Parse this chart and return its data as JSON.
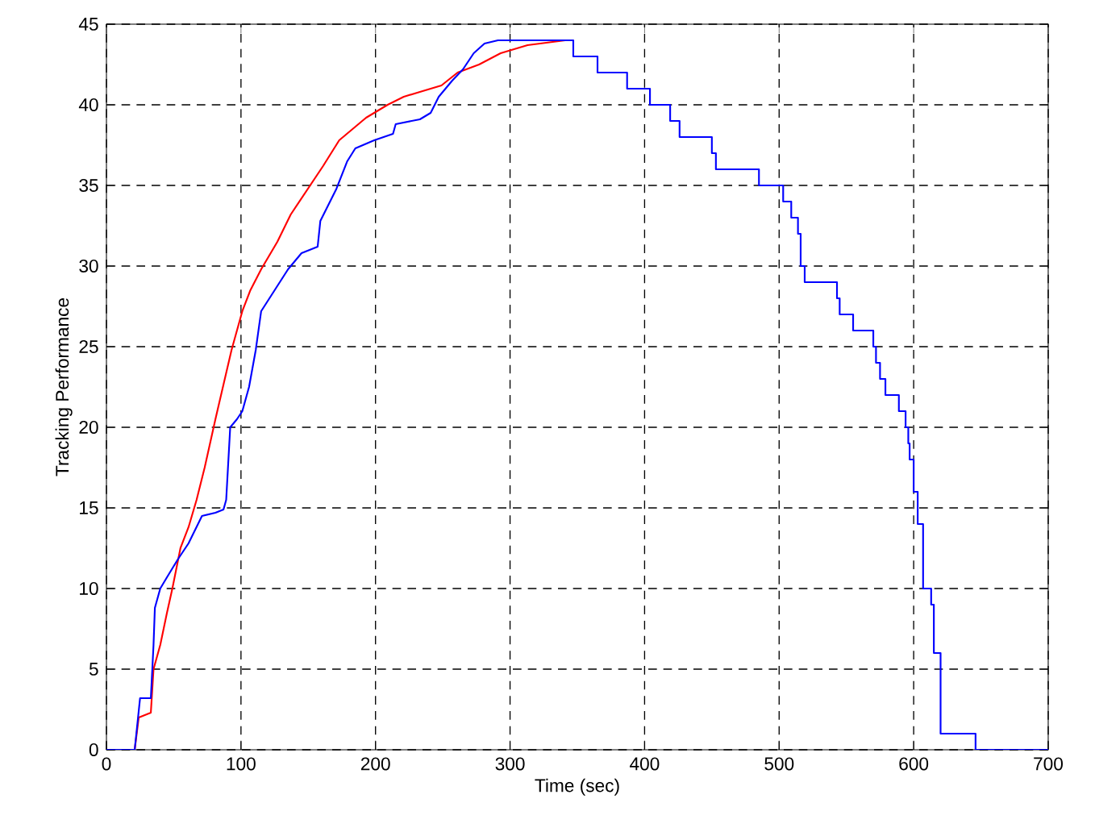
{
  "chart_data": {
    "type": "line",
    "xlabel": "Time (sec)",
    "ylabel": "Tracking Performance",
    "xlim": [
      0,
      700
    ],
    "ylim": [
      0,
      45
    ],
    "xticks": [
      0,
      100,
      200,
      300,
      400,
      500,
      600,
      700
    ],
    "yticks": [
      0,
      5,
      10,
      15,
      20,
      25,
      30,
      35,
      40,
      45
    ],
    "grid": true,
    "series": [
      {
        "color": "#ff0000",
        "x": [
          21,
          24,
          33,
          35,
          40,
          45,
          49,
          55,
          61,
          67,
          73,
          81,
          93,
          101,
          107,
          115,
          127,
          137,
          149,
          161,
          173,
          193,
          209,
          221,
          233,
          249,
          261,
          277,
          293,
          313,
          341
        ],
        "values": [
          0,
          2,
          2.3,
          5,
          6.5,
          8.5,
          10,
          12.5,
          13.8,
          15.5,
          17.5,
          20.5,
          24.8,
          27.2,
          28.5,
          29.8,
          31.5,
          33.2,
          34.7,
          36.2,
          37.8,
          39.2,
          40,
          40.5,
          40.8,
          41.2,
          42,
          42.5,
          43.2,
          43.7,
          44
        ]
      },
      {
        "color": "#0000ff",
        "x": [
          0,
          21,
          25,
          33,
          35,
          36,
          40,
          45,
          53,
          61,
          71,
          81,
          87,
          89,
          92,
          97,
          101,
          106,
          111,
          115,
          125,
          135,
          145,
          157,
          159,
          165,
          171,
          179,
          185,
          199,
          213,
          215,
          233,
          241,
          247,
          257,
          265,
          273,
          281,
          291,
          347,
          347,
          365,
          365,
          387,
          387,
          404,
          404,
          419,
          419,
          426,
          426,
          450,
          450,
          453,
          453,
          485,
          485,
          503,
          503,
          509,
          509,
          514,
          514,
          516,
          516,
          519,
          519,
          543,
          543,
          545,
          545,
          555,
          555,
          570,
          570,
          572,
          572,
          575,
          575,
          579,
          579,
          589,
          589,
          594,
          594,
          596,
          596,
          597,
          597,
          600,
          600,
          603,
          603,
          607,
          607,
          613,
          613,
          615,
          615,
          620,
          620,
          646,
          646,
          700
        ],
        "values": [
          0,
          0,
          3.2,
          3.2,
          6.5,
          8.8,
          10,
          10.7,
          11.8,
          12.8,
          14.5,
          14.7,
          14.9,
          15.5,
          20,
          20.5,
          21,
          22.5,
          24.8,
          27.2,
          28.5,
          29.8,
          30.8,
          31.2,
          32.8,
          33.8,
          34.8,
          36.5,
          37.3,
          37.8,
          38.2,
          38.8,
          39.1,
          39.5,
          40.5,
          41.5,
          42.2,
          43.2,
          43.8,
          44,
          44,
          43,
          43,
          42,
          42,
          41,
          41,
          40,
          40,
          39,
          39,
          38,
          38,
          37,
          37,
          36,
          36,
          35,
          35,
          34,
          34,
          33,
          33,
          32,
          32,
          30,
          30,
          29,
          29,
          28,
          28,
          27,
          27,
          26,
          26,
          25,
          25,
          24,
          24,
          23,
          23,
          22,
          22,
          21,
          21,
          20,
          20,
          19,
          19,
          18,
          18,
          16,
          16,
          14,
          14,
          10,
          10,
          9,
          9,
          6,
          6,
          1,
          1,
          0,
          0
        ]
      }
    ]
  }
}
